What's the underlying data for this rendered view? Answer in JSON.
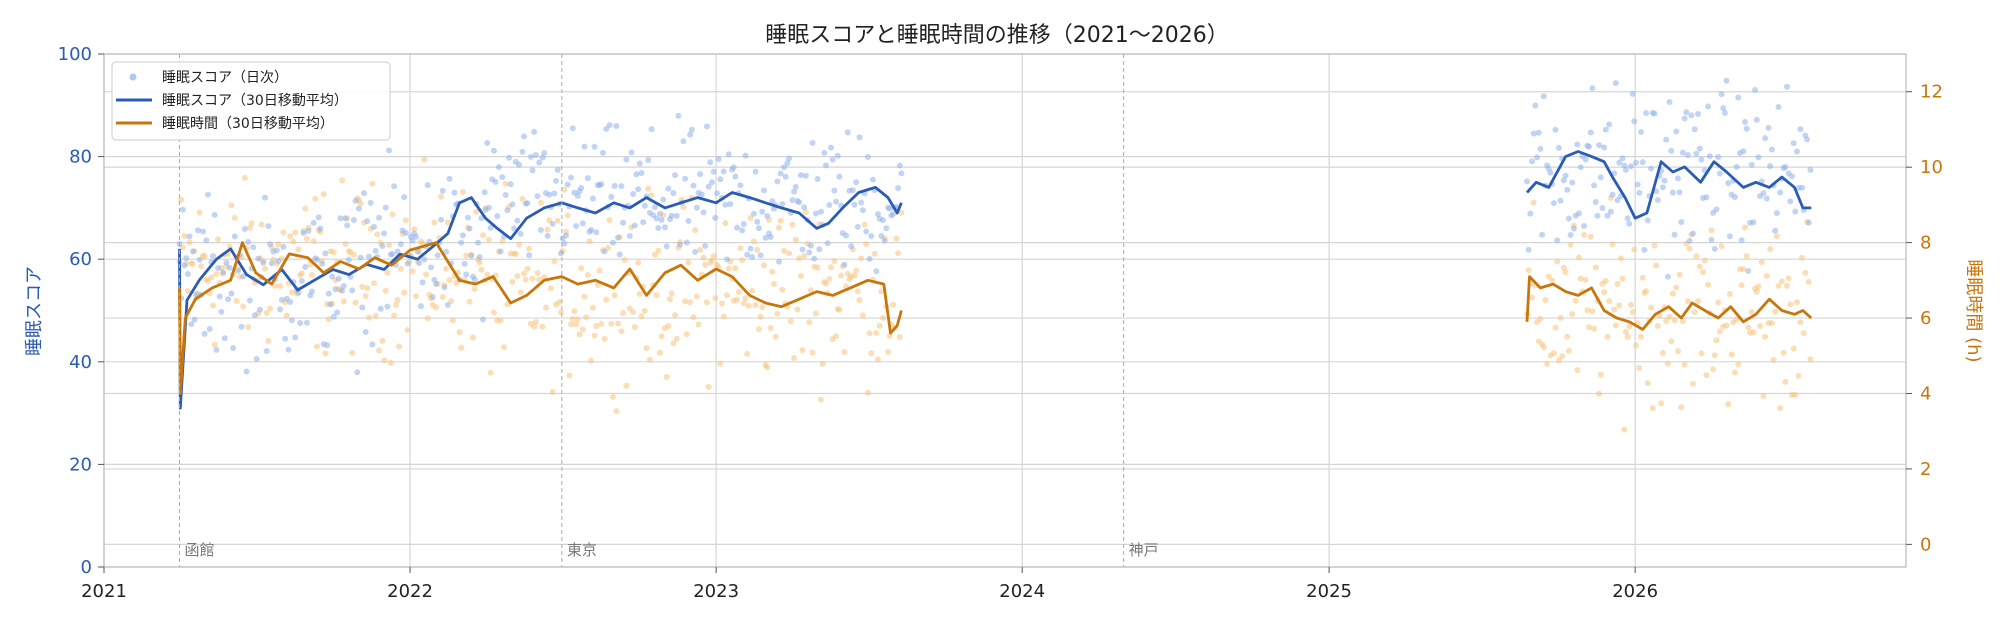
{
  "chart_data": {
    "type": "line",
    "title": "睡眠スコアと睡眠時間の推移（2021〜2026）",
    "xlabel": "",
    "ylabel_left": "睡眠スコア",
    "ylabel_right": "睡眠時間 (h)",
    "x_range": [
      "2021-01-01",
      "2026-11-20"
    ],
    "x_ticks": [
      "2021",
      "2022",
      "2023",
      "2024",
      "2025",
      "2026"
    ],
    "y_left_range": [
      0,
      100
    ],
    "y_left_ticks": [
      0,
      20,
      40,
      60,
      80,
      100
    ],
    "y_right_range": [
      -0.6,
      13
    ],
    "y_right_ticks": [
      0,
      2,
      4,
      6,
      8,
      10,
      12
    ],
    "grid": true,
    "legend_position": "top-left",
    "colors": {
      "score": "#2a5bb5",
      "score_dots": "#8fb0ea",
      "hours": "#c8760a",
      "hours_dots": "#f7c37a"
    },
    "annotations": [
      {
        "date": "2021-04-01",
        "text": "函館"
      },
      {
        "date": "2022-07-01",
        "text": "東京"
      },
      {
        "date": "2024-05-01",
        "text": "神戸"
      }
    ],
    "legend": [
      "睡眠スコア（日次）",
      "睡眠スコア（30日移動平均）",
      "睡眠時間（30日移動平均）"
    ],
    "series": [
      {
        "name": "睡眠スコア（30日移動平均）",
        "axis": "left",
        "points": [
          [
            "2021-04-01",
            62
          ],
          [
            "2021-04-02",
            31
          ],
          [
            "2021-04-10",
            52
          ],
          [
            "2021-04-25",
            56
          ],
          [
            "2021-05-15",
            60
          ],
          [
            "2021-06-01",
            62
          ],
          [
            "2021-06-20",
            57
          ],
          [
            "2021-07-10",
            55
          ],
          [
            "2021-08-01",
            58
          ],
          [
            "2021-08-20",
            54
          ],
          [
            "2021-09-10",
            56
          ],
          [
            "2021-10-01",
            58
          ],
          [
            "2021-10-20",
            57
          ],
          [
            "2021-11-10",
            59
          ],
          [
            "2021-12-01",
            58
          ],
          [
            "2021-12-20",
            61
          ],
          [
            "2022-01-10",
            60
          ],
          [
            "2022-02-01",
            63
          ],
          [
            "2022-02-15",
            65
          ],
          [
            "2022-03-01",
            71
          ],
          [
            "2022-03-15",
            72
          ],
          [
            "2022-04-01",
            68
          ],
          [
            "2022-04-15",
            66
          ],
          [
            "2022-05-01",
            64
          ],
          [
            "2022-05-20",
            68
          ],
          [
            "2022-06-10",
            70
          ],
          [
            "2022-07-01",
            71
          ],
          [
            "2022-07-20",
            70
          ],
          [
            "2022-08-10",
            69
          ],
          [
            "2022-09-01",
            71
          ],
          [
            "2022-09-20",
            70
          ],
          [
            "2022-10-10",
            72
          ],
          [
            "2022-11-01",
            70
          ],
          [
            "2022-11-20",
            71
          ],
          [
            "2022-12-10",
            72
          ],
          [
            "2023-01-01",
            71
          ],
          [
            "2023-01-20",
            73
          ],
          [
            "2023-02-10",
            72
          ],
          [
            "2023-03-01",
            71
          ],
          [
            "2023-03-20",
            70
          ],
          [
            "2023-04-10",
            69
          ],
          [
            "2023-05-01",
            66
          ],
          [
            "2023-05-15",
            67
          ],
          [
            "2023-06-01",
            70
          ],
          [
            "2023-06-20",
            73
          ],
          [
            "2023-07-10",
            74
          ],
          [
            "2023-07-25",
            72
          ],
          [
            "2023-08-05",
            69
          ],
          [
            "2023-08-10",
            71
          ]
        ]
      },
      {
        "name": "睡眠スコア（30日移動平均）",
        "axis": "left",
        "points": [
          [
            "2025-08-25",
            73
          ],
          [
            "2025-09-05",
            75
          ],
          [
            "2025-09-20",
            74
          ],
          [
            "2025-10-10",
            80
          ],
          [
            "2025-10-25",
            81
          ],
          [
            "2025-11-10",
            80
          ],
          [
            "2025-11-25",
            79
          ],
          [
            "2025-12-05",
            76
          ],
          [
            "2025-12-20",
            72
          ],
          [
            "2026-01-01",
            68
          ],
          [
            "2026-01-15",
            69
          ],
          [
            "2026-02-01",
            79
          ],
          [
            "2026-02-15",
            77
          ],
          [
            "2026-03-01",
            78
          ],
          [
            "2026-03-20",
            75
          ],
          [
            "2026-04-05",
            79
          ],
          [
            "2026-04-20",
            77
          ],
          [
            "2026-05-10",
            74
          ],
          [
            "2026-05-25",
            75
          ],
          [
            "2026-06-10",
            74
          ],
          [
            "2026-06-25",
            76
          ],
          [
            "2026-07-10",
            74
          ],
          [
            "2026-07-20",
            70
          ],
          [
            "2026-07-30",
            70
          ]
        ]
      },
      {
        "name": "睡眠時間（30日移動平均）",
        "axis": "right",
        "points": [
          [
            "2021-04-01",
            6.8
          ],
          [
            "2021-04-02",
            4.0
          ],
          [
            "2021-04-08",
            6.0
          ],
          [
            "2021-04-20",
            6.5
          ],
          [
            "2021-05-10",
            6.8
          ],
          [
            "2021-06-01",
            7.0
          ],
          [
            "2021-06-15",
            8.0
          ],
          [
            "2021-07-01",
            7.2
          ],
          [
            "2021-07-20",
            6.9
          ],
          [
            "2021-08-10",
            7.7
          ],
          [
            "2021-09-01",
            7.6
          ],
          [
            "2021-09-20",
            7.2
          ],
          [
            "2021-10-10",
            7.5
          ],
          [
            "2021-11-01",
            7.3
          ],
          [
            "2021-11-20",
            7.6
          ],
          [
            "2021-12-10",
            7.4
          ],
          [
            "2022-01-01",
            7.8
          ],
          [
            "2022-02-01",
            8.0
          ],
          [
            "2022-02-15",
            7.5
          ],
          [
            "2022-03-01",
            7.0
          ],
          [
            "2022-03-20",
            6.9
          ],
          [
            "2022-04-10",
            7.1
          ],
          [
            "2022-05-01",
            6.4
          ],
          [
            "2022-05-20",
            6.6
          ],
          [
            "2022-06-10",
            7.0
          ],
          [
            "2022-07-01",
            7.1
          ],
          [
            "2022-07-20",
            6.9
          ],
          [
            "2022-08-10",
            7.0
          ],
          [
            "2022-09-01",
            6.8
          ],
          [
            "2022-09-20",
            7.3
          ],
          [
            "2022-10-10",
            6.6
          ],
          [
            "2022-11-01",
            7.2
          ],
          [
            "2022-11-20",
            7.4
          ],
          [
            "2022-12-10",
            7.0
          ],
          [
            "2023-01-01",
            7.3
          ],
          [
            "2023-01-20",
            7.1
          ],
          [
            "2023-02-10",
            6.6
          ],
          [
            "2023-03-01",
            6.4
          ],
          [
            "2023-03-20",
            6.3
          ],
          [
            "2023-04-10",
            6.5
          ],
          [
            "2023-05-01",
            6.7
          ],
          [
            "2023-05-20",
            6.6
          ],
          [
            "2023-06-10",
            6.8
          ],
          [
            "2023-07-01",
            7.0
          ],
          [
            "2023-07-20",
            6.9
          ],
          [
            "2023-07-28",
            5.6
          ],
          [
            "2023-08-05",
            5.8
          ],
          [
            "2023-08-10",
            6.2
          ]
        ]
      },
      {
        "name": "睡眠時間（30日移動平均）",
        "axis": "right",
        "points": [
          [
            "2025-08-25",
            5.9
          ],
          [
            "2025-08-28",
            7.1
          ],
          [
            "2025-09-10",
            6.8
          ],
          [
            "2025-09-25",
            6.9
          ],
          [
            "2025-10-10",
            6.7
          ],
          [
            "2025-10-25",
            6.6
          ],
          [
            "2025-11-10",
            6.8
          ],
          [
            "2025-11-25",
            6.2
          ],
          [
            "2025-12-10",
            6.0
          ],
          [
            "2025-12-25",
            5.9
          ],
          [
            "2026-01-10",
            5.7
          ],
          [
            "2026-01-25",
            6.1
          ],
          [
            "2026-02-10",
            6.3
          ],
          [
            "2026-02-25",
            6.0
          ],
          [
            "2026-03-10",
            6.4
          ],
          [
            "2026-03-25",
            6.2
          ],
          [
            "2026-04-10",
            6.0
          ],
          [
            "2026-04-25",
            6.3
          ],
          [
            "2026-05-10",
            5.9
          ],
          [
            "2026-05-25",
            6.1
          ],
          [
            "2026-06-10",
            6.5
          ],
          [
            "2026-06-25",
            6.2
          ],
          [
            "2026-07-10",
            6.1
          ],
          [
            "2026-07-20",
            6.2
          ],
          [
            "2026-07-30",
            6.0
          ]
        ]
      }
    ],
    "scatter_score_clusters": [
      {
        "from": "2021-04-01",
        "to": "2021-10-31",
        "center": 56,
        "spread": 11
      },
      {
        "from": "2021-11-01",
        "to": "2022-03-31",
        "center": 62,
        "spread": 11
      },
      {
        "from": "2022-04-01",
        "to": "2023-08-10",
        "center": 71,
        "spread": 10
      },
      {
        "from": "2025-08-25",
        "to": "2026-07-30",
        "center": 77,
        "spread": 12
      }
    ],
    "scatter_hours_clusters": [
      {
        "from": "2021-04-01",
        "to": "2022-03-31",
        "center": 7.3,
        "spread": 1.6
      },
      {
        "from": "2022-04-01",
        "to": "2023-08-10",
        "center": 6.8,
        "spread": 1.7
      },
      {
        "from": "2025-08-25",
        "to": "2026-07-30",
        "center": 6.2,
        "spread": 1.8
      }
    ]
  }
}
